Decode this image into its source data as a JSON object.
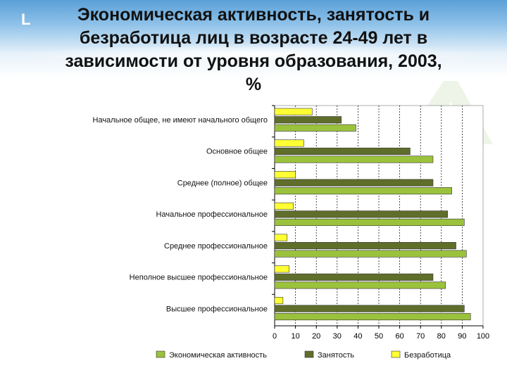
{
  "slide": {
    "corner_mark": "L",
    "title_lines": [
      "Экономическая активность, занятость и",
      "безработица лиц в возрасте 24-49 лет в",
      "зависимости от уровня образования, 2003,",
      "%"
    ]
  },
  "colors": {
    "activity": "#9bc23c",
    "employment": "#5f6e2a",
    "unemployment": "#ffff33",
    "bar_stroke": "#333333",
    "grid": "#000000"
  },
  "chart_data": {
    "type": "bar",
    "orientation": "horizontal",
    "title": "",
    "xlabel": "",
    "ylabel": "",
    "xlim": [
      0,
      100
    ],
    "ticks": [
      "0",
      "10",
      "20",
      "30",
      "40",
      "50",
      "60",
      "70",
      "80",
      "90",
      "100"
    ],
    "grid": true,
    "legend_position": "bottom",
    "categories": [
      "Начальное общее, не имеют начального общего",
      "Основное общее",
      "Среднее (полное) общее",
      "Начальное профессиональное",
      "Среднее профессиональное",
      "Неполное высшее профессиональное",
      "Высшее профессиональное"
    ],
    "series": [
      {
        "name": "Экономическая активность",
        "values": [
          39,
          76,
          85,
          91,
          92,
          82,
          94
        ]
      },
      {
        "name": "Занятость",
        "values": [
          32,
          65,
          76,
          83,
          87,
          76,
          91
        ]
      },
      {
        "name": "Безработица",
        "values": [
          18,
          14,
          10,
          9,
          6,
          7,
          4
        ]
      }
    ]
  }
}
